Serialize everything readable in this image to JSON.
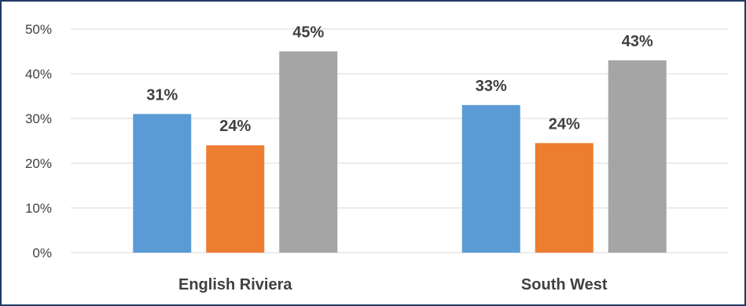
{
  "chart_data": {
    "type": "bar",
    "title": "",
    "xlabel": "",
    "ylabel": "",
    "categories": [
      "English Riviera",
      "South West"
    ],
    "series": [
      {
        "color": "#5b9bd5",
        "values": [
          31,
          33
        ],
        "labels": [
          "31%",
          "33%"
        ]
      },
      {
        "color": "#ed7d31",
        "values": [
          24,
          24.5
        ],
        "labels": [
          "24%",
          "24%"
        ]
      },
      {
        "color": "#a5a5a5",
        "values": [
          45,
          43
        ],
        "labels": [
          "45%",
          "43%"
        ]
      }
    ],
    "ylim": [
      0,
      50
    ],
    "yticks": [
      0,
      10,
      20,
      30,
      40,
      50
    ],
    "ytick_labels": [
      "0%",
      "10%",
      "20%",
      "30%",
      "40%",
      "50%"
    ],
    "grid": true,
    "legend": "none",
    "colors": {
      "gridline": "#d9d9d9",
      "text": "#404040",
      "border": "#1f3864"
    }
  }
}
